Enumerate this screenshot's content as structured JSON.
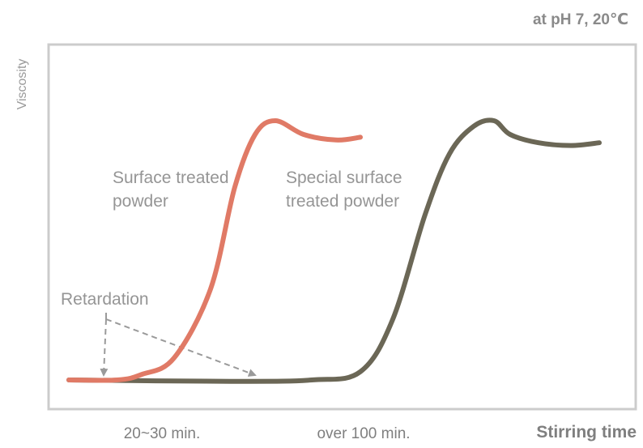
{
  "chart_data": {
    "type": "line",
    "title": "",
    "note": "at pH 7, 20℃",
    "xlabel": "Stirring time",
    "ylabel": "Viscosity",
    "x_ticks": [
      "20~30 min.",
      "over 100 min."
    ],
    "grid": false,
    "legend": "none",
    "series": [
      {
        "label_lines": [
          "Surface treated",
          "powder"
        ],
        "color": "#e07a66",
        "points": [
          [
            0,
            0.04
          ],
          [
            60,
            0.04
          ],
          [
            90,
            0.06
          ],
          [
            130,
            0.12
          ],
          [
            175,
            0.37
          ],
          [
            205,
            0.74
          ],
          [
            230,
            0.93
          ],
          [
            255,
            0.98
          ],
          [
            290,
            0.93
          ],
          [
            330,
            0.91
          ],
          [
            360,
            0.92
          ]
        ]
      },
      {
        "label_lines": [
          "Special surface",
          "treated powder"
        ],
        "color": "#6b6756",
        "points": [
          [
            0,
            0.04
          ],
          [
            200,
            0.035
          ],
          [
            300,
            0.04
          ],
          [
            360,
            0.07
          ],
          [
            400,
            0.26
          ],
          [
            440,
            0.64
          ],
          [
            470,
            0.86
          ],
          [
            500,
            0.96
          ],
          [
            525,
            0.98
          ],
          [
            545,
            0.93
          ],
          [
            580,
            0.9
          ],
          [
            620,
            0.89
          ],
          [
            655,
            0.9
          ]
        ]
      }
    ],
    "annotations": [
      {
        "text": "Retardation",
        "arrows_to": [
          [
            43,
            0.04
          ],
          [
            230,
            0.04
          ]
        ]
      }
    ]
  }
}
